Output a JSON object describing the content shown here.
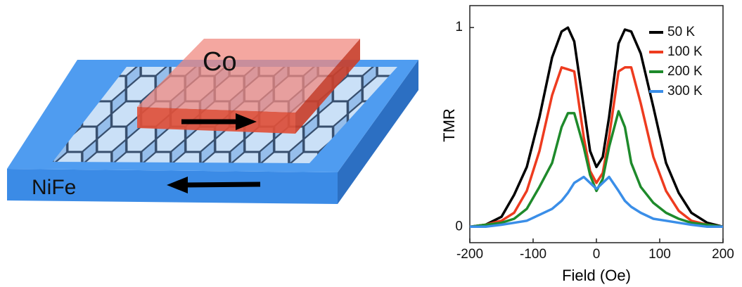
{
  "diagram": {
    "top_layer": "Co",
    "bottom_layer": "NiFe"
  },
  "chart_data": {
    "type": "line",
    "xlabel": "Field (Oe)",
    "ylabel": "TMR",
    "x": [
      -200,
      -175,
      -150,
      -130,
      -110,
      -90,
      -70,
      -55,
      -45,
      -35,
      -20,
      -10,
      0,
      10,
      20,
      35,
      45,
      55,
      70,
      90,
      110,
      130,
      150,
      175,
      200
    ],
    "series": [
      {
        "name": "50 K",
        "color": "#000000",
        "values": [
          0,
          0.01,
          0.05,
          0.16,
          0.3,
          0.55,
          0.85,
          0.98,
          1.0,
          0.93,
          0.6,
          0.38,
          0.3,
          0.35,
          0.55,
          0.92,
          0.99,
          0.98,
          0.87,
          0.6,
          0.32,
          0.17,
          0.07,
          0.02,
          0
        ]
      },
      {
        "name": "100 K",
        "color": "#ee3b1f",
        "values": [
          0,
          0.01,
          0.03,
          0.07,
          0.18,
          0.38,
          0.66,
          0.8,
          0.79,
          0.78,
          0.45,
          0.28,
          0.22,
          0.27,
          0.45,
          0.78,
          0.8,
          0.8,
          0.62,
          0.35,
          0.18,
          0.08,
          0.03,
          0.01,
          0
        ]
      },
      {
        "name": "200 K",
        "color": "#1e8a2b",
        "values": [
          0,
          0.01,
          0.02,
          0.04,
          0.09,
          0.2,
          0.32,
          0.5,
          0.57,
          0.57,
          0.4,
          0.26,
          0.18,
          0.24,
          0.4,
          0.58,
          0.5,
          0.32,
          0.2,
          0.12,
          0.07,
          0.04,
          0.02,
          0.01,
          0
        ]
      },
      {
        "name": "300 K",
        "color": "#3a8ee8",
        "values": [
          0,
          0,
          0.01,
          0.02,
          0.03,
          0.06,
          0.09,
          0.13,
          0.17,
          0.22,
          0.25,
          0.22,
          0.19,
          0.22,
          0.25,
          0.18,
          0.13,
          0.1,
          0.07,
          0.04,
          0.03,
          0.02,
          0.01,
          0,
          0
        ]
      }
    ],
    "xlim": [
      -200,
      200
    ],
    "xticks": [
      -200,
      -100,
      0,
      100,
      200
    ],
    "ylim": [
      -0.08,
      1.11
    ],
    "yticks": [
      0,
      1
    ],
    "legend": "upper right"
  }
}
